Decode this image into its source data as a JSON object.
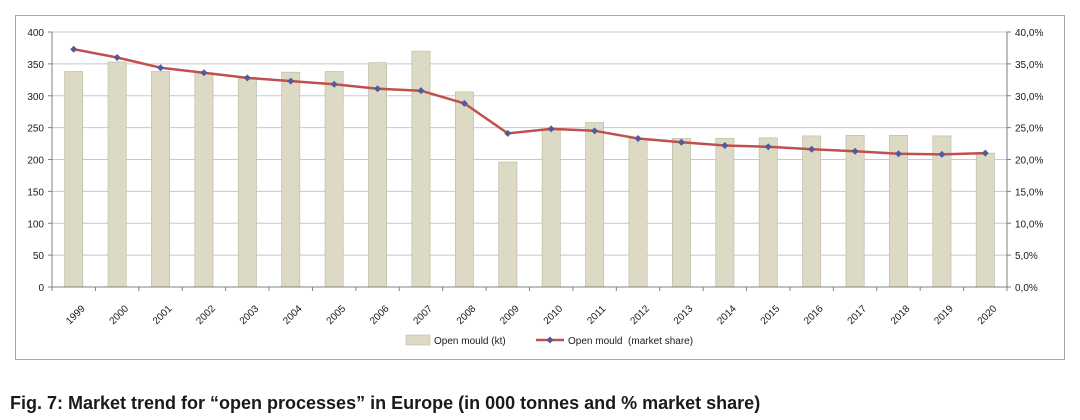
{
  "chart_data": {
    "type": "bar+line",
    "categories": [
      "1999",
      "2000",
      "2001",
      "2002",
      "2003",
      "2004",
      "2005",
      "2006",
      "2007",
      "2008",
      "2009",
      "2010",
      "2011",
      "2012",
      "2013",
      "2014",
      "2015",
      "2016",
      "2017",
      "2018",
      "2019",
      "2020"
    ],
    "series": [
      {
        "name": "Open mould (kt)",
        "type": "bar",
        "axis": "left",
        "color": "#dcdac4",
        "values": [
          338,
          353,
          338,
          336,
          329,
          337,
          338,
          352,
          370,
          306,
          196,
          248,
          258,
          233,
          233,
          233,
          234,
          237,
          238,
          238,
          237,
          210
        ]
      },
      {
        "name": "Open mould  (market share)",
        "type": "line",
        "axis": "right",
        "color": "#c0504d",
        "marker_color": "#4f5b9a",
        "values": [
          37.3,
          36.0,
          34.4,
          33.6,
          32.8,
          32.3,
          31.8,
          31.1,
          30.8,
          28.8,
          24.1,
          24.8,
          24.5,
          23.3,
          22.7,
          22.2,
          22.0,
          21.6,
          21.3,
          20.9,
          20.8,
          21.0
        ]
      }
    ],
    "y_left": {
      "min": 0,
      "max": 400,
      "ticks": [
        "0",
        "50",
        "100",
        "150",
        "200",
        "250",
        "300",
        "350",
        "400"
      ]
    },
    "y_right": {
      "min": 0,
      "max": 40,
      "ticks": [
        "0,0%",
        "5,0%",
        "10,0%",
        "15,0%",
        "20,0%",
        "25,0%",
        "30,0%",
        "35,0%",
        "40,0%"
      ]
    },
    "grid": true,
    "legend_position": "bottom",
    "title": ""
  },
  "caption": "Fig.  7: Market trend for “open processes” in Europe (in 000 tonnes and % market share)"
}
